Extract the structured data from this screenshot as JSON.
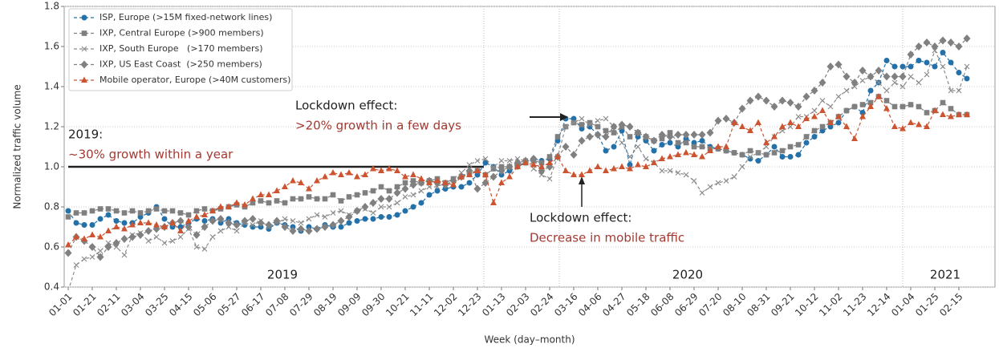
{
  "chart_data": {
    "type": "line",
    "xlabel": "Week (day–month)",
    "ylabel": "Normalized traffic volume",
    "ylim": [
      0.4,
      1.8
    ],
    "yticks": [
      0.4,
      0.6,
      0.8,
      {
        "value": 1,
        "label": "1.0"
      },
      1.2,
      1.4,
      1.6,
      1.8
    ],
    "grid": true,
    "legend": "upper left",
    "baseline": 1,
    "annotations": [
      "2019:",
      "~30% growth within a year",
      "Lockdown effect:",
      ">20% growth in a few days",
      "Lockdown effect:",
      "Decrease in mobile traffic"
    ],
    "period_labels": [
      "2019",
      "2020",
      "2021"
    ],
    "categories": [
      "01-01",
      null,
      null,
      "01-21",
      null,
      null,
      "02-11",
      null,
      null,
      "03-04",
      null,
      null,
      "03-25",
      null,
      null,
      "04-15",
      null,
      null,
      "05-06",
      null,
      null,
      "05-27",
      null,
      null,
      "06-17",
      null,
      null,
      "07-08",
      null,
      null,
      "07-29",
      null,
      null,
      "08-19",
      null,
      null,
      "09-09",
      null,
      null,
      "09-30",
      null,
      null,
      "10-21",
      null,
      null,
      "11-11",
      null,
      null,
      "12-02",
      null,
      null,
      "12-23",
      null,
      null,
      "01-13",
      null,
      null,
      "02-03",
      null,
      null,
      "02-24",
      null,
      null,
      "03-16",
      null,
      null,
      "04-06",
      null,
      null,
      "04-27",
      null,
      null,
      "05-18",
      null,
      null,
      "06-08",
      null,
      null,
      "06-29",
      null,
      null,
      "07-20",
      null,
      null,
      "08-10",
      null,
      null,
      "08-31",
      null,
      null,
      "09-21",
      null,
      null,
      "10-12",
      null,
      null,
      "11-02",
      null,
      null,
      "11-23",
      null,
      null,
      "12-14",
      null,
      null,
      "01-04",
      null,
      null,
      "01-25",
      null,
      null,
      "02-15",
      null
    ],
    "series": [
      {
        "name": "ISP, Europe (>15M fixed-network lines)",
        "color": "#2470a8",
        "marker": "o",
        "values": [
          0.78,
          0.72,
          0.71,
          0.71,
          0.74,
          0.76,
          0.73,
          0.72,
          0.72,
          0.75,
          0.77,
          0.8,
          0.74,
          0.7,
          0.7,
          0.72,
          0.74,
          0.73,
          0.74,
          0.72,
          0.74,
          0.72,
          0.71,
          0.7,
          0.7,
          0.69,
          0.72,
          0.71,
          0.7,
          0.68,
          0.7,
          0.69,
          0.71,
          0.7,
          0.7,
          0.72,
          0.73,
          0.74,
          0.74,
          0.75,
          0.75,
          0.76,
          0.78,
          0.8,
          0.82,
          0.86,
          0.88,
          0.89,
          0.9,
          0.9,
          0.92,
          0.96,
          1.02,
          1.0,
          0.96,
          0.98,
          1.0,
          1.02,
          1.04,
          1.03,
          1.04,
          1.13,
          1.24,
          1.24,
          1.19,
          1.2,
          1.16,
          1.08,
          1.1,
          1.18,
          1.01,
          1.15,
          1.13,
          1.08,
          1.11,
          1.12,
          1.1,
          1.14,
          1.12,
          1.13,
          1.1,
          1.09,
          1.08,
          1.07,
          1.06,
          1.04,
          1.03,
          1.06,
          1.1,
          1.05,
          1.05,
          1.06,
          1.12,
          1.15,
          1.18,
          1.2,
          1.22,
          1.28,
          1.3,
          1.27,
          1.38,
          1.42,
          1.53,
          1.5,
          1.5,
          1.5,
          1.53,
          1.52,
          1.5,
          1.57,
          1.52,
          1.47,
          1.44
        ]
      },
      {
        "name": "IXP, Central Europe (>900 members)",
        "color": "#7f7f7f",
        "marker": "s",
        "values": [
          0.75,
          0.77,
          0.77,
          0.78,
          0.79,
          0.79,
          0.78,
          0.77,
          0.78,
          0.77,
          0.78,
          0.79,
          0.78,
          0.78,
          0.77,
          0.76,
          0.78,
          0.79,
          0.78,
          0.79,
          0.8,
          0.81,
          0.8,
          0.82,
          0.83,
          0.82,
          0.83,
          0.82,
          0.84,
          0.84,
          0.85,
          0.84,
          0.84,
          0.86,
          0.83,
          0.85,
          0.86,
          0.87,
          0.88,
          0.9,
          0.88,
          0.9,
          0.92,
          0.93,
          0.92,
          0.93,
          0.94,
          0.92,
          0.94,
          0.95,
          0.97,
          0.98,
          0.96,
          0.99,
          1.0,
          1.0,
          1.01,
          1.02,
          1.03,
          1.02,
          1.05,
          1.15,
          1.2,
          1.22,
          1.21,
          1.22,
          1.2,
          1.18,
          1.17,
          1.2,
          1.15,
          1.17,
          1.15,
          1.13,
          1.14,
          1.17,
          1.12,
          1.12,
          1.1,
          1.1,
          1.09,
          1.09,
          1.08,
          1.07,
          1.06,
          1.08,
          1.07,
          1.06,
          1.07,
          1.08,
          1.1,
          1.11,
          1.15,
          1.18,
          1.2,
          1.22,
          1.25,
          1.28,
          1.3,
          1.31,
          1.32,
          1.35,
          1.33,
          1.3,
          1.3,
          1.31,
          1.3,
          1.27,
          1.28,
          1.32,
          1.29,
          1.26,
          1.26
        ]
      },
      {
        "name": "IXP, South Europe   (>170 members)",
        "color": "#8c8c8c",
        "marker": "x",
        "values": [
          0.38,
          0.51,
          0.54,
          0.55,
          0.58,
          0.62,
          0.6,
          0.56,
          0.66,
          0.67,
          0.63,
          0.65,
          0.62,
          0.63,
          0.65,
          0.69,
          0.6,
          0.59,
          0.65,
          0.68,
          0.7,
          0.68,
          0.72,
          0.71,
          0.73,
          0.7,
          0.72,
          0.74,
          0.73,
          0.72,
          0.74,
          0.76,
          0.75,
          0.77,
          0.78,
          0.76,
          0.78,
          0.79,
          0.77,
          0.8,
          0.8,
          0.82,
          0.85,
          0.86,
          0.88,
          0.9,
          0.9,
          0.92,
          0.94,
          0.97,
          1.01,
          1.03,
          1.04,
          1.0,
          1.03,
          1.03,
          1.04,
          1.03,
          0.99,
          0.96,
          0.94,
          1.05,
          1.2,
          1.22,
          1.24,
          1.21,
          1.23,
          1.24,
          1.2,
          1.12,
          1.05,
          1.1,
          1.04,
          1.02,
          0.98,
          0.98,
          0.97,
          0.96,
          0.93,
          0.87,
          0.9,
          0.92,
          0.93,
          0.95,
          1.0,
          1.05,
          1.07,
          1.1,
          1.15,
          1.18,
          1.2,
          1.25,
          1.25,
          1.28,
          1.33,
          1.3,
          1.35,
          1.38,
          1.4,
          1.43,
          1.45,
          1.42,
          1.38,
          1.42,
          1.4,
          1.45,
          1.42,
          1.46,
          1.58,
          1.5,
          1.38,
          1.38,
          1.5
        ]
      },
      {
        "name": "IXP, US East Coast  (>250 members)",
        "color": "#808080",
        "marker": "D",
        "values": [
          0.57,
          0.65,
          0.63,
          0.6,
          0.55,
          0.6,
          0.62,
          0.64,
          0.65,
          0.66,
          0.68,
          0.69,
          0.7,
          0.72,
          0.73,
          0.7,
          0.66,
          0.7,
          0.73,
          0.74,
          0.72,
          0.71,
          0.73,
          0.74,
          0.72,
          0.71,
          0.73,
          0.7,
          0.68,
          0.69,
          0.68,
          0.69,
          0.7,
          0.71,
          0.73,
          0.75,
          0.78,
          0.8,
          0.82,
          0.84,
          0.84,
          0.87,
          0.89,
          0.91,
          0.92,
          0.93,
          0.92,
          0.91,
          0.93,
          0.95,
          0.98,
          0.89,
          0.92,
          0.95,
          0.98,
          1.0,
          1.02,
          1.03,
          1.04,
          0.98,
          1.0,
          1.05,
          1.1,
          1.06,
          1.13,
          1.15,
          1.16,
          1.15,
          1.2,
          1.21,
          1.2,
          1.17,
          1.15,
          1.13,
          1.16,
          1.15,
          1.16,
          1.16,
          1.16,
          1.16,
          1.17,
          1.23,
          1.24,
          1.22,
          1.29,
          1.33,
          1.35,
          1.33,
          1.3,
          1.33,
          1.32,
          1.3,
          1.35,
          1.38,
          1.42,
          1.5,
          1.51,
          1.45,
          1.42,
          1.48,
          1.45,
          1.48,
          1.45,
          1.45,
          1.45,
          1.56,
          1.6,
          1.62,
          1.6,
          1.63,
          1.62,
          1.6,
          1.64
        ]
      },
      {
        "name": "Mobile operator, Europe (>40M customers)",
        "color": "#cc5430",
        "marker": "^",
        "values": [
          0.61,
          0.65,
          0.64,
          0.66,
          0.65,
          0.68,
          0.7,
          0.69,
          0.71,
          0.72,
          0.72,
          0.71,
          0.7,
          0.72,
          0.68,
          0.73,
          0.75,
          0.76,
          0.78,
          0.8,
          0.8,
          0.82,
          0.81,
          0.84,
          0.86,
          0.86,
          0.88,
          0.9,
          0.93,
          0.92,
          0.89,
          0.93,
          0.95,
          0.97,
          0.96,
          0.97,
          0.95,
          0.96,
          0.99,
          0.98,
          0.99,
          0.98,
          0.95,
          0.96,
          0.94,
          0.92,
          0.93,
          0.92,
          0.91,
          0.95,
          0.96,
          0.98,
          0.96,
          0.82,
          0.92,
          0.95,
          1.0,
          1.02,
          1.01,
          1.0,
          1.02,
          1.05,
          0.98,
          0.96,
          0.96,
          0.98,
          1.0,
          0.98,
          0.99,
          1.0,
          0.99,
          1.01,
          1.0,
          1.02,
          1.04,
          1.05,
          1.06,
          1.07,
          1.06,
          1.05,
          1.08,
          1.1,
          1.1,
          1.22,
          1.2,
          1.18,
          1.22,
          1.12,
          1.15,
          1.2,
          1.22,
          1.2,
          1.24,
          1.25,
          1.28,
          1.22,
          1.25,
          1.2,
          1.14,
          1.25,
          1.3,
          1.35,
          1.29,
          1.2,
          1.19,
          1.22,
          1.21,
          1.2,
          1.28,
          1.26,
          1.25,
          1.26,
          1.26
        ]
      }
    ]
  }
}
